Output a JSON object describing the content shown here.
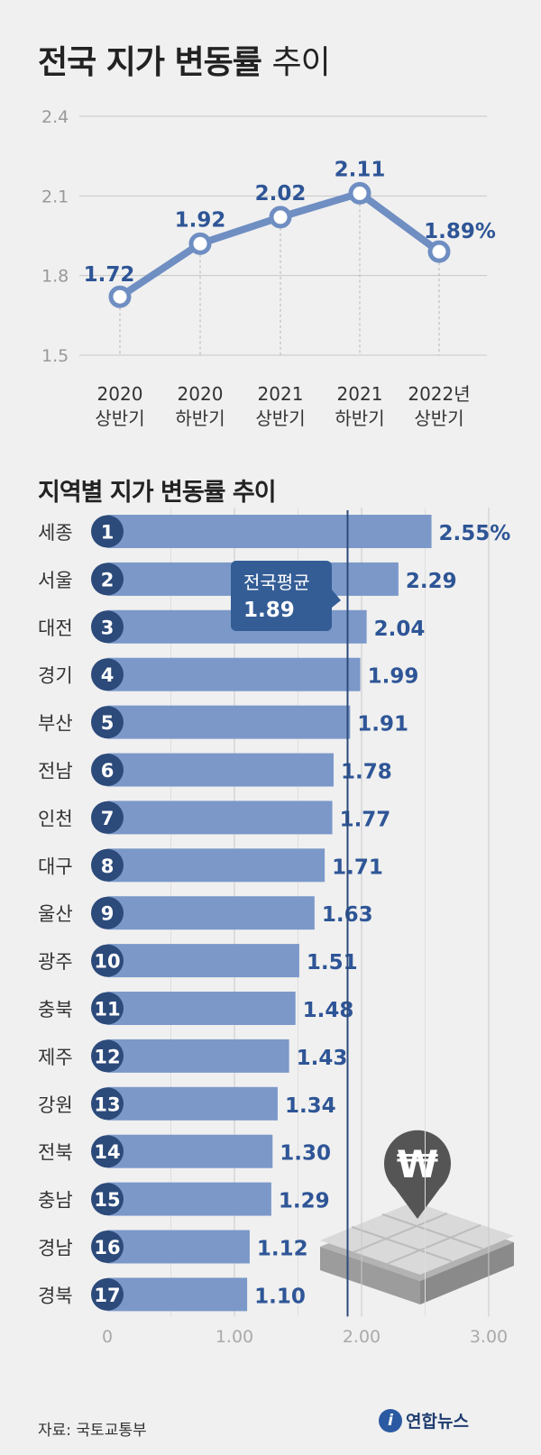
{
  "title": {
    "bold": "전국 지가 변동률",
    "light": "추이"
  },
  "section_title": "지역별 지가 변동률 추이",
  "source": "자료: 국토교통부",
  "logo": {
    "name": "연합뉴스",
    "mark": "i"
  },
  "colors": {
    "line": "#6f8ec2",
    "bar": "#7b98c9",
    "label": "#2e5596",
    "badge": "#2c4a7a",
    "avg_line": "#2c4a7a",
    "callout": "#345d96"
  },
  "chart_data": [
    {
      "type": "line",
      "title": "전국 지가 변동률 추이",
      "x": [
        "2020\n상반기",
        "2020\n하반기",
        "2021\n상반기",
        "2021\n하반기",
        "2022년\n상반기"
      ],
      "values": [
        1.72,
        1.92,
        2.02,
        2.11,
        1.89
      ],
      "value_labels": [
        "1.72",
        "1.92",
        "2.02",
        "2.11",
        "1.89%"
      ],
      "yticks": [
        "2.4",
        "2.1",
        "1.8",
        "1.5"
      ],
      "ylim": [
        1.5,
        2.4
      ],
      "grid": true
    },
    {
      "type": "bar",
      "orientation": "horizontal",
      "title": "지역별 지가 변동률 추이",
      "categories": [
        "세종",
        "서울",
        "대전",
        "경기",
        "부산",
        "전남",
        "인천",
        "대구",
        "울산",
        "광주",
        "충북",
        "제주",
        "강원",
        "전북",
        "충남",
        "경남",
        "경북"
      ],
      "ranks": [
        "1",
        "2",
        "3",
        "4",
        "5",
        "6",
        "7",
        "8",
        "9",
        "10",
        "11",
        "12",
        "13",
        "14",
        "15",
        "16",
        "17"
      ],
      "values": [
        2.55,
        2.29,
        2.04,
        1.99,
        1.91,
        1.78,
        1.77,
        1.71,
        1.63,
        1.51,
        1.48,
        1.43,
        1.34,
        1.3,
        1.29,
        1.12,
        1.1
      ],
      "value_labels": [
        "2.55%",
        "2.29",
        "2.04",
        "1.99",
        "1.91",
        "1.78",
        "1.77",
        "1.71",
        "1.63",
        "1.51",
        "1.48",
        "1.43",
        "1.34",
        "1.30",
        "1.29",
        "1.12",
        "1.10"
      ],
      "xticks": [
        "0",
        "1.00",
        "2.00",
        "3.00"
      ],
      "xlim": [
        0,
        3
      ],
      "reference": {
        "label": "전국평균",
        "value": 1.89,
        "value_label": "1.89"
      }
    }
  ]
}
